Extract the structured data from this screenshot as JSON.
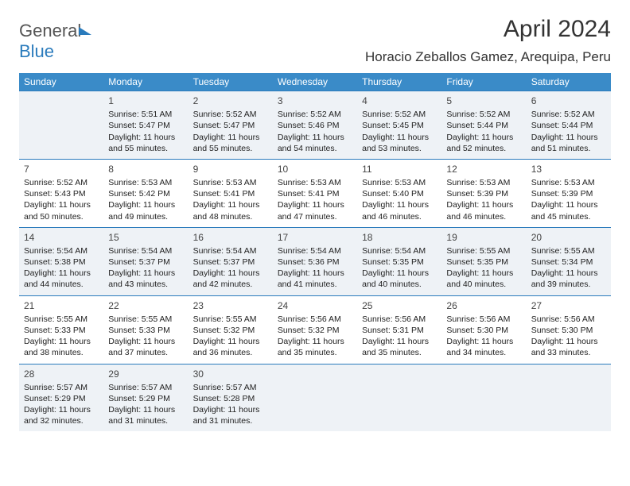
{
  "logo": {
    "part1": "General",
    "part2": "Blue"
  },
  "title": "April 2024",
  "location": "Horacio Zeballos Gamez, Arequipa, Peru",
  "headers": [
    "Sunday",
    "Monday",
    "Tuesday",
    "Wednesday",
    "Thursday",
    "Friday",
    "Saturday"
  ],
  "colors": {
    "header_bg": "#3a8bc8",
    "header_fg": "#ffffff",
    "border": "#2a7bbc",
    "shade_bg": "#eef2f6",
    "text": "#222222",
    "title_color": "#333333"
  },
  "weeks": [
    [
      null,
      {
        "n": "1",
        "sr": "Sunrise: 5:51 AM",
        "ss": "Sunset: 5:47 PM",
        "d1": "Daylight: 11 hours",
        "d2": "and 55 minutes."
      },
      {
        "n": "2",
        "sr": "Sunrise: 5:52 AM",
        "ss": "Sunset: 5:47 PM",
        "d1": "Daylight: 11 hours",
        "d2": "and 55 minutes."
      },
      {
        "n": "3",
        "sr": "Sunrise: 5:52 AM",
        "ss": "Sunset: 5:46 PM",
        "d1": "Daylight: 11 hours",
        "d2": "and 54 minutes."
      },
      {
        "n": "4",
        "sr": "Sunrise: 5:52 AM",
        "ss": "Sunset: 5:45 PM",
        "d1": "Daylight: 11 hours",
        "d2": "and 53 minutes."
      },
      {
        "n": "5",
        "sr": "Sunrise: 5:52 AM",
        "ss": "Sunset: 5:44 PM",
        "d1": "Daylight: 11 hours",
        "d2": "and 52 minutes."
      },
      {
        "n": "6",
        "sr": "Sunrise: 5:52 AM",
        "ss": "Sunset: 5:44 PM",
        "d1": "Daylight: 11 hours",
        "d2": "and 51 minutes."
      }
    ],
    [
      {
        "n": "7",
        "sr": "Sunrise: 5:52 AM",
        "ss": "Sunset: 5:43 PM",
        "d1": "Daylight: 11 hours",
        "d2": "and 50 minutes."
      },
      {
        "n": "8",
        "sr": "Sunrise: 5:53 AM",
        "ss": "Sunset: 5:42 PM",
        "d1": "Daylight: 11 hours",
        "d2": "and 49 minutes."
      },
      {
        "n": "9",
        "sr": "Sunrise: 5:53 AM",
        "ss": "Sunset: 5:41 PM",
        "d1": "Daylight: 11 hours",
        "d2": "and 48 minutes."
      },
      {
        "n": "10",
        "sr": "Sunrise: 5:53 AM",
        "ss": "Sunset: 5:41 PM",
        "d1": "Daylight: 11 hours",
        "d2": "and 47 minutes."
      },
      {
        "n": "11",
        "sr": "Sunrise: 5:53 AM",
        "ss": "Sunset: 5:40 PM",
        "d1": "Daylight: 11 hours",
        "d2": "and 46 minutes."
      },
      {
        "n": "12",
        "sr": "Sunrise: 5:53 AM",
        "ss": "Sunset: 5:39 PM",
        "d1": "Daylight: 11 hours",
        "d2": "and 46 minutes."
      },
      {
        "n": "13",
        "sr": "Sunrise: 5:53 AM",
        "ss": "Sunset: 5:39 PM",
        "d1": "Daylight: 11 hours",
        "d2": "and 45 minutes."
      }
    ],
    [
      {
        "n": "14",
        "sr": "Sunrise: 5:54 AM",
        "ss": "Sunset: 5:38 PM",
        "d1": "Daylight: 11 hours",
        "d2": "and 44 minutes."
      },
      {
        "n": "15",
        "sr": "Sunrise: 5:54 AM",
        "ss": "Sunset: 5:37 PM",
        "d1": "Daylight: 11 hours",
        "d2": "and 43 minutes."
      },
      {
        "n": "16",
        "sr": "Sunrise: 5:54 AM",
        "ss": "Sunset: 5:37 PM",
        "d1": "Daylight: 11 hours",
        "d2": "and 42 minutes."
      },
      {
        "n": "17",
        "sr": "Sunrise: 5:54 AM",
        "ss": "Sunset: 5:36 PM",
        "d1": "Daylight: 11 hours",
        "d2": "and 41 minutes."
      },
      {
        "n": "18",
        "sr": "Sunrise: 5:54 AM",
        "ss": "Sunset: 5:35 PM",
        "d1": "Daylight: 11 hours",
        "d2": "and 40 minutes."
      },
      {
        "n": "19",
        "sr": "Sunrise: 5:55 AM",
        "ss": "Sunset: 5:35 PM",
        "d1": "Daylight: 11 hours",
        "d2": "and 40 minutes."
      },
      {
        "n": "20",
        "sr": "Sunrise: 5:55 AM",
        "ss": "Sunset: 5:34 PM",
        "d1": "Daylight: 11 hours",
        "d2": "and 39 minutes."
      }
    ],
    [
      {
        "n": "21",
        "sr": "Sunrise: 5:55 AM",
        "ss": "Sunset: 5:33 PM",
        "d1": "Daylight: 11 hours",
        "d2": "and 38 minutes."
      },
      {
        "n": "22",
        "sr": "Sunrise: 5:55 AM",
        "ss": "Sunset: 5:33 PM",
        "d1": "Daylight: 11 hours",
        "d2": "and 37 minutes."
      },
      {
        "n": "23",
        "sr": "Sunrise: 5:55 AM",
        "ss": "Sunset: 5:32 PM",
        "d1": "Daylight: 11 hours",
        "d2": "and 36 minutes."
      },
      {
        "n": "24",
        "sr": "Sunrise: 5:56 AM",
        "ss": "Sunset: 5:32 PM",
        "d1": "Daylight: 11 hours",
        "d2": "and 35 minutes."
      },
      {
        "n": "25",
        "sr": "Sunrise: 5:56 AM",
        "ss": "Sunset: 5:31 PM",
        "d1": "Daylight: 11 hours",
        "d2": "and 35 minutes."
      },
      {
        "n": "26",
        "sr": "Sunrise: 5:56 AM",
        "ss": "Sunset: 5:30 PM",
        "d1": "Daylight: 11 hours",
        "d2": "and 34 minutes."
      },
      {
        "n": "27",
        "sr": "Sunrise: 5:56 AM",
        "ss": "Sunset: 5:30 PM",
        "d1": "Daylight: 11 hours",
        "d2": "and 33 minutes."
      }
    ],
    [
      {
        "n": "28",
        "sr": "Sunrise: 5:57 AM",
        "ss": "Sunset: 5:29 PM",
        "d1": "Daylight: 11 hours",
        "d2": "and 32 minutes."
      },
      {
        "n": "29",
        "sr": "Sunrise: 5:57 AM",
        "ss": "Sunset: 5:29 PM",
        "d1": "Daylight: 11 hours",
        "d2": "and 31 minutes."
      },
      {
        "n": "30",
        "sr": "Sunrise: 5:57 AM",
        "ss": "Sunset: 5:28 PM",
        "d1": "Daylight: 11 hours",
        "d2": "and 31 minutes."
      },
      null,
      null,
      null,
      null
    ]
  ]
}
